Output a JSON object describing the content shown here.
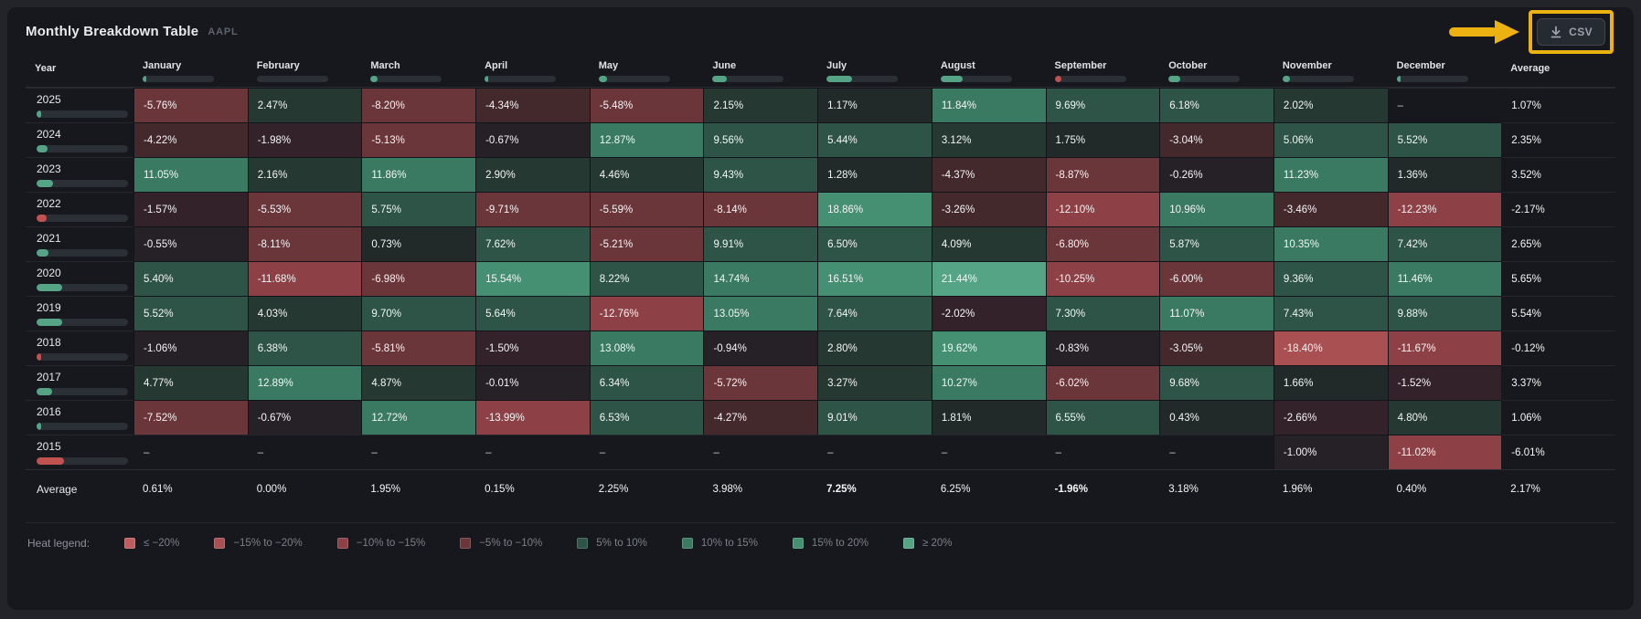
{
  "header": {
    "title": "Monthly Breakdown Table",
    "symbol": "AAPL",
    "csv_button_label": "CSV"
  },
  "columns": {
    "year": "Year",
    "average": "Average"
  },
  "chart_data": {
    "type": "heatmap",
    "title": "Monthly Breakdown Table",
    "subtitle": "AAPL",
    "x_categories": [
      "January",
      "February",
      "March",
      "April",
      "May",
      "June",
      "July",
      "August",
      "September",
      "October",
      "November",
      "December"
    ],
    "y_categories": [
      "2025",
      "2024",
      "2023",
      "2022",
      "2021",
      "2020",
      "2019",
      "2018",
      "2017",
      "2016",
      "2015"
    ],
    "value_unit": "%",
    "null_display": "–",
    "rows": [
      {
        "year": "2025",
        "values": [
          -5.76,
          2.47,
          -8.2,
          -4.34,
          -5.48,
          2.15,
          1.17,
          11.84,
          9.69,
          6.18,
          2.02,
          null
        ],
        "average": 1.07
      },
      {
        "year": "2024",
        "values": [
          -4.22,
          -1.98,
          -5.13,
          -0.67,
          12.87,
          9.56,
          5.44,
          3.12,
          1.75,
          -3.04,
          5.06,
          5.52
        ],
        "average": 2.35
      },
      {
        "year": "2023",
        "values": [
          11.05,
          2.16,
          11.86,
          2.9,
          4.46,
          9.43,
          1.28,
          -4.37,
          -8.87,
          -0.26,
          11.23,
          1.36
        ],
        "average": 3.52
      },
      {
        "year": "2022",
        "values": [
          -1.57,
          -5.53,
          5.75,
          -9.71,
          -5.59,
          -8.14,
          18.86,
          -3.26,
          -12.1,
          10.96,
          -3.46,
          -12.23
        ],
        "average": -2.17
      },
      {
        "year": "2021",
        "values": [
          -0.55,
          -8.11,
          0.73,
          7.62,
          -5.21,
          9.91,
          6.5,
          4.09,
          -6.8,
          5.87,
          10.35,
          7.42
        ],
        "average": 2.65
      },
      {
        "year": "2020",
        "values": [
          5.4,
          -11.68,
          -6.98,
          15.54,
          8.22,
          14.74,
          16.51,
          21.44,
          -10.25,
          -6.0,
          9.36,
          11.46
        ],
        "average": 5.65
      },
      {
        "year": "2019",
        "values": [
          5.52,
          4.03,
          9.7,
          5.64,
          -12.76,
          13.05,
          7.64,
          -2.02,
          7.3,
          11.07,
          7.43,
          9.88
        ],
        "average": 5.54
      },
      {
        "year": "2018",
        "values": [
          -1.06,
          6.38,
          -5.81,
          -1.5,
          13.08,
          -0.94,
          2.8,
          19.62,
          -0.83,
          -3.05,
          -18.4,
          -11.67
        ],
        "average": -0.12
      },
      {
        "year": "2017",
        "values": [
          4.77,
          12.89,
          4.87,
          -0.01,
          6.34,
          -5.72,
          3.27,
          10.27,
          -6.02,
          9.68,
          1.66,
          -1.52
        ],
        "average": 3.37
      },
      {
        "year": "2016",
        "values": [
          -7.52,
          -0.67,
          12.72,
          -13.99,
          6.53,
          -4.27,
          9.01,
          1.81,
          6.55,
          0.43,
          -2.66,
          4.8
        ],
        "average": 1.06
      },
      {
        "year": "2015",
        "values": [
          null,
          null,
          null,
          null,
          null,
          null,
          null,
          null,
          null,
          null,
          -1.0,
          -11.02
        ],
        "average": -6.01
      }
    ],
    "column_averages": {
      "label": "Average",
      "values": [
        0.61,
        0.0,
        1.95,
        0.15,
        2.25,
        3.98,
        7.25,
        6.25,
        -1.96,
        3.18,
        1.96,
        0.4
      ],
      "bold_indices": [
        6,
        8
      ],
      "overall": 2.17
    }
  },
  "legend": {
    "label": "Heat legend:",
    "items": [
      {
        "label": "≤ −20%",
        "color": "#c05e5f"
      },
      {
        "label": "−15% to −20%",
        "color": "#a85052"
      },
      {
        "label": "−10% to −15%",
        "color": "#8d4146"
      },
      {
        "label": "−5% to −10%",
        "color": "#6b363a"
      },
      {
        "label": "5% to 10%",
        "color": "#2d5447"
      },
      {
        "label": "10% to 15%",
        "color": "#3a7a63"
      },
      {
        "label": "15% to 20%",
        "color": "#458f72"
      },
      {
        "label": "≥ 20%",
        "color": "#55a485"
      }
    ]
  },
  "colors": {
    "positive_bar": "#55a485",
    "negative_bar": "#c2524f",
    "annotation": "#ecb211",
    "heat_bands": [
      {
        "min": 20,
        "color": "#55a485"
      },
      {
        "min": 15,
        "color": "#458f72"
      },
      {
        "min": 10,
        "color": "#3a7a63"
      },
      {
        "min": 5,
        "color": "#2d5447"
      },
      {
        "min": 2,
        "color": "#253831"
      },
      {
        "min": 0,
        "color": "#212a29"
      },
      {
        "min": -1.2,
        "color": "#262027"
      },
      {
        "min": -3,
        "color": "#33222a"
      },
      {
        "min": -5,
        "color": "#43282c"
      },
      {
        "min": -10,
        "color": "#6b363a"
      },
      {
        "min": -15,
        "color": "#8d4146"
      },
      {
        "min": -20,
        "color": "#a85052"
      },
      {
        "min": -999,
        "color": "#c05e5f"
      }
    ]
  },
  "annotation": {
    "shape": "arrow-and-box",
    "color": "#ecb211",
    "target": "csv-download-button"
  }
}
